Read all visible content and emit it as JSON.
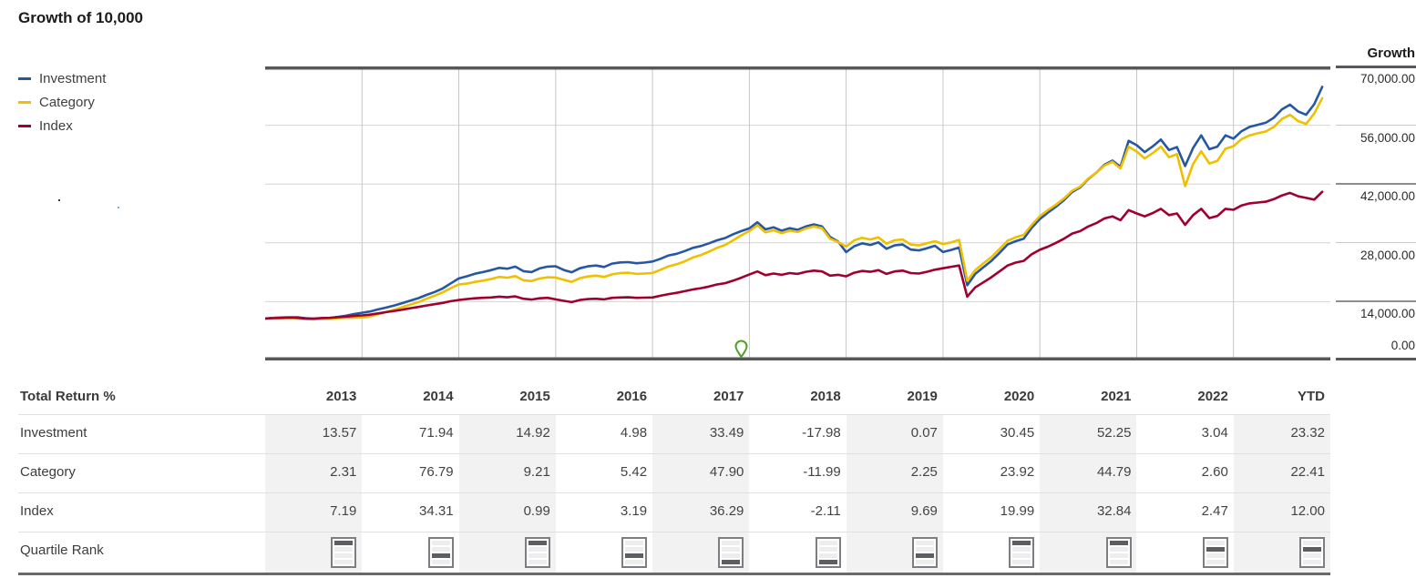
{
  "title": "Growth of 10,000",
  "legend": [
    {
      "label": "Investment",
      "color": "#2557a4"
    },
    {
      "label": "Category",
      "color": "#efc000"
    },
    {
      "label": "Index",
      "color": "#a00030"
    }
  ],
  "growth_axis": {
    "header": "Growth",
    "ticks": [
      {
        "value": 70000,
        "label": "70,000.00"
      },
      {
        "value": 56000,
        "label": "56,000.00"
      },
      {
        "value": 42000,
        "label": "42,000.00"
      },
      {
        "value": 28000,
        "label": "28,000.00"
      },
      {
        "value": 14000,
        "label": "14,000.00"
      },
      {
        "value": 0,
        "label": "0.00"
      }
    ]
  },
  "chart_data": {
    "type": "line",
    "title": "Growth of 10,000",
    "ylabel": "Growth",
    "ylim": [
      0,
      70000
    ],
    "y_gridlines": [
      14000,
      28000,
      42000,
      56000
    ],
    "x_segments": [
      "2013",
      "2014",
      "2015",
      "2016",
      "2017",
      "2018",
      "2019",
      "2020",
      "2021",
      "2022",
      "YTD"
    ],
    "months_per_segment": 12,
    "start_value": 10000,
    "legend_position": "top-left",
    "marker": {
      "shape": "pin",
      "color": "#4f9e2b",
      "month_index": 59
    },
    "series": [
      {
        "name": "Investment",
        "color": "#2557a4",
        "values": [
          10000,
          10150,
          10220,
          10300,
          10280,
          10050,
          9930,
          10080,
          10120,
          10350,
          10650,
          11050,
          11357,
          11650,
          12150,
          12600,
          13100,
          13650,
          14250,
          14850,
          15600,
          16300,
          17150,
          18350,
          19527,
          20050,
          20650,
          21050,
          21500,
          22050,
          21850,
          22350,
          21250,
          21050,
          21900,
          22350,
          22440,
          21550,
          21000,
          21950,
          22400,
          22600,
          22250,
          23050,
          23350,
          23400,
          23150,
          23300,
          23558,
          24200,
          25000,
          25400,
          26050,
          26800,
          27250,
          27900,
          28600,
          29150,
          30050,
          30800,
          31448,
          32900,
          31200,
          31700,
          30900,
          31500,
          31100,
          31900,
          32400,
          31900,
          29400,
          28300,
          25793,
          27200,
          27900,
          27500,
          28100,
          26600,
          27400,
          27600,
          26400,
          26200,
          26700,
          27300,
          25811,
          26300,
          26900,
          17900,
          20600,
          22200,
          23700,
          25600,
          27600,
          28400,
          29000,
          31600,
          33670,
          35200,
          36600,
          38200,
          40100,
          41200,
          43200,
          44700,
          46600,
          47600,
          46100,
          52300,
          51262,
          49600,
          51000,
          52600,
          50100,
          50800,
          46300,
          50600,
          53600,
          50300,
          50900,
          53600,
          52820,
          54600,
          55600,
          56100,
          56600,
          57800,
          59800,
          60900,
          59300,
          58500,
          61000,
          65138
        ]
      },
      {
        "name": "Category",
        "color": "#efc000",
        "values": [
          10000,
          10050,
          10080,
          10120,
          10060,
          9850,
          9750,
          9900,
          9950,
          10050,
          10150,
          10200,
          10231,
          10500,
          11000,
          11500,
          12100,
          12700,
          13300,
          13900,
          14700,
          15400,
          16200,
          17200,
          18087,
          18300,
          18700,
          19000,
          19400,
          19900,
          19700,
          20100,
          19100,
          18900,
          19500,
          19800,
          19753,
          19200,
          18700,
          19600,
          20000,
          20200,
          19900,
          20500,
          20800,
          20900,
          20600,
          20700,
          20824,
          21600,
          22400,
          22900,
          23600,
          24500,
          25100,
          25900,
          26800,
          27500,
          28600,
          29800,
          30798,
          32200,
          30500,
          31000,
          30300,
          30900,
          30600,
          31400,
          31900,
          31500,
          29000,
          28200,
          27105,
          28600,
          29200,
          28800,
          29300,
          27800,
          28600,
          28800,
          27600,
          27400,
          27900,
          28400,
          27715,
          28100,
          28700,
          19000,
          21500,
          23100,
          24600,
          26500,
          28500,
          29300,
          29900,
          32300,
          34345,
          35800,
          37100,
          38600,
          40400,
          41400,
          43300,
          44700,
          46400,
          47300,
          45700,
          50900,
          49727,
          48100,
          49400,
          50900,
          48400,
          49100,
          41500,
          46800,
          49800,
          46900,
          47500,
          50400,
          51020,
          52700,
          53600,
          54100,
          54500,
          55600,
          57500,
          58500,
          57000,
          56300,
          58800,
          62454
        ]
      },
      {
        "name": "Index",
        "color": "#a00030",
        "values": [
          10000,
          10080,
          10120,
          10180,
          10150,
          10000,
          9950,
          10100,
          10150,
          10300,
          10450,
          10600,
          10719,
          10900,
          11200,
          11500,
          11800,
          12100,
          12450,
          12750,
          13100,
          13400,
          13700,
          14100,
          14397,
          14600,
          14800,
          14900,
          15000,
          15200,
          15050,
          15250,
          14700,
          14500,
          14800,
          14900,
          14540,
          14200,
          13900,
          14400,
          14600,
          14700,
          14550,
          14900,
          15000,
          15050,
          14900,
          14950,
          15004,
          15400,
          15800,
          16100,
          16500,
          16900,
          17200,
          17600,
          18100,
          18400,
          19000,
          19700,
          20449,
          21200,
          20300,
          20700,
          20400,
          20800,
          20600,
          21100,
          21400,
          21200,
          20200,
          20400,
          20017,
          20900,
          21300,
          21100,
          21500,
          20600,
          21200,
          21400,
          20800,
          20700,
          21100,
          21600,
          21957,
          22300,
          22600,
          15200,
          17400,
          18600,
          19800,
          21200,
          22600,
          23300,
          23700,
          25300,
          26347,
          27100,
          28000,
          29000,
          30200,
          30800,
          31900,
          32700,
          33800,
          34300,
          33400,
          35800,
          35000,
          34300,
          35100,
          36100,
          34600,
          35000,
          32300,
          34600,
          36100,
          33900,
          34400,
          36100,
          35864,
          36900,
          37400,
          37600,
          37800,
          38400,
          39300,
          39900,
          39100,
          38700,
          38300,
          40168
        ]
      }
    ]
  },
  "table": {
    "header_label": "Total Return %",
    "columns": [
      "2013",
      "2014",
      "2015",
      "2016",
      "2017",
      "2018",
      "2019",
      "2020",
      "2021",
      "2022",
      "YTD"
    ],
    "rows": [
      {
        "label": "Investment",
        "values": [
          "13.57",
          "71.94",
          "14.92",
          "4.98",
          "33.49",
          "-17.98",
          "0.07",
          "30.45",
          "52.25",
          "3.04",
          "23.32"
        ]
      },
      {
        "label": "Category",
        "values": [
          "2.31",
          "76.79",
          "9.21",
          "5.42",
          "47.90",
          "-11.99",
          "2.25",
          "23.92",
          "44.79",
          "2.60",
          "22.41"
        ]
      },
      {
        "label": "Index",
        "values": [
          "7.19",
          "34.31",
          "0.99",
          "3.19",
          "36.29",
          "-2.11",
          "9.69",
          "19.99",
          "32.84",
          "2.47",
          "12.00"
        ]
      }
    ],
    "quartile_row": {
      "label": "Quartile Rank",
      "quartiles": [
        1,
        3,
        1,
        3,
        4,
        4,
        3,
        1,
        1,
        2,
        2
      ]
    }
  }
}
